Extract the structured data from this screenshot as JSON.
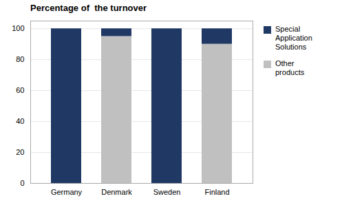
{
  "chart_data": {
    "type": "bar",
    "stacked": true,
    "title": "Percentage of  the turnover",
    "categories": [
      "Germany",
      "Denmark",
      "Sweden",
      "Finland"
    ],
    "series": [
      {
        "name": "Other\nproducts",
        "color": "#C0C0C0",
        "values": [
          0,
          95,
          0,
          90
        ]
      },
      {
        "name": "Special\nApplication\nSolutions",
        "color": "#1F3864",
        "values": [
          100,
          5,
          100,
          10
        ]
      }
    ],
    "ylim": [
      0,
      105
    ],
    "yticks": [
      0,
      20,
      40,
      60,
      80,
      100
    ],
    "grid": true,
    "legend": "upper right"
  }
}
